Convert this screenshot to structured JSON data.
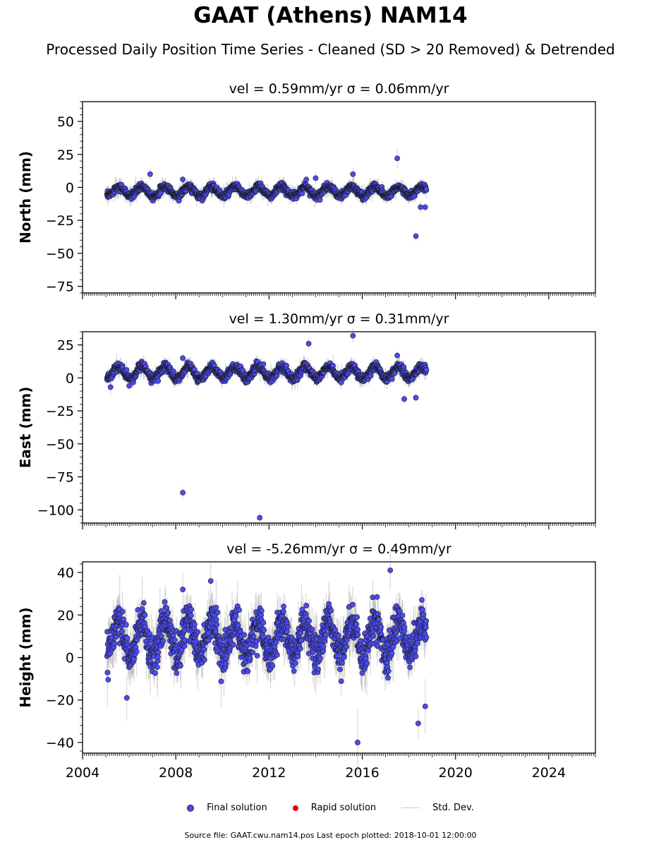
{
  "title": "GAAT (Athens) NAM14",
  "subtitle": "Processed Daily Position Time Series - Cleaned (SD > 20 Removed) & Detrended",
  "footer": "Source file: GAAT.cwu.nam14.pos  Last epoch plotted: 2018-10-01 12:00:00",
  "legend": [
    {
      "label": "Final solution",
      "color": "#4b4bf2"
    },
    {
      "label": "Rapid solution",
      "color": "#e00000"
    },
    {
      "label": "Std. Dev.",
      "color": "#cccccc"
    }
  ],
  "chart_data": [
    {
      "type": "scatter",
      "title": "vel = 0.59mm/yr   σ = 0.06mm/yr",
      "ylabel": "North (mm)",
      "xlim": [
        2004,
        2026
      ],
      "ylim": [
        -80,
        65
      ],
      "yticks": [
        50,
        25,
        0,
        -25,
        -50,
        -75
      ],
      "ytick_labels": [
        "50",
        "25",
        "0",
        "−25",
        "−50",
        "−75"
      ],
      "xticks": [
        2004,
        2008,
        2012,
        2016,
        2020,
        2024
      ],
      "xtick_labels": [],
      "data_range": [
        2005.05,
        2018.75
      ],
      "series": [
        {
          "name": "Final solution",
          "amplitude": 3.5,
          "noise": 2.2,
          "offset": -3,
          "outliers": [
            [
              2006.9,
              10
            ],
            [
              2008.3,
              6
            ],
            [
              2013.6,
              6
            ],
            [
              2014.0,
              7
            ],
            [
              2015.6,
              10
            ],
            [
              2017.5,
              22
            ],
            [
              2018.3,
              -37
            ],
            [
              2018.5,
              -15
            ],
            [
              2018.7,
              -15
            ]
          ]
        }
      ]
    },
    {
      "type": "scatter",
      "title": "vel = 1.30mm/yr   σ = 0.31mm/yr",
      "ylabel": "East (mm)",
      "xlim": [
        2004,
        2026
      ],
      "ylim": [
        -110,
        35
      ],
      "yticks": [
        25,
        0,
        -25,
        -50,
        -75,
        -100
      ],
      "ytick_labels": [
        "25",
        "0",
        "−25",
        "−50",
        "−75",
        "−100"
      ],
      "xticks": [
        2004,
        2008,
        2012,
        2016,
        2020,
        2024
      ],
      "xtick_labels": [],
      "data_range": [
        2005.05,
        2018.75
      ],
      "series": [
        {
          "name": "Final solution",
          "amplitude": 4.5,
          "noise": 2.5,
          "offset": 4,
          "outliers": [
            [
              2005.2,
              -7
            ],
            [
              2006.0,
              -6
            ],
            [
              2008.3,
              -87
            ],
            [
              2008.3,
              15
            ],
            [
              2011.6,
              -106
            ],
            [
              2013.7,
              26
            ],
            [
              2015.6,
              32
            ],
            [
              2017.5,
              17
            ],
            [
              2017.8,
              -16
            ],
            [
              2018.3,
              -15
            ]
          ]
        }
      ]
    },
    {
      "type": "scatter",
      "title": "vel = -5.26mm/yr   σ = 0.49mm/yr",
      "ylabel": "Height (mm)",
      "xlim": [
        2004,
        2026
      ],
      "ylim": [
        -45,
        45
      ],
      "yticks": [
        40,
        20,
        0,
        -20,
        -40
      ],
      "ytick_labels": [
        "40",
        "20",
        "0",
        "−20",
        "−40"
      ],
      "xticks": [
        2004,
        2008,
        2012,
        2016,
        2020,
        2024
      ],
      "xtick_labels": [
        "2004",
        "2008",
        "2012",
        "2016",
        "2020",
        "2024"
      ],
      "data_range": [
        2005.05,
        2018.75
      ],
      "series": [
        {
          "name": "Final solution",
          "amplitude": 8,
          "noise": 7,
          "offset": 9,
          "outliers": [
            [
              2005.9,
              -19
            ],
            [
              2008.3,
              32
            ],
            [
              2009.5,
              36
            ],
            [
              2015.8,
              -40
            ],
            [
              2017.2,
              41
            ],
            [
              2018.4,
              -31
            ],
            [
              2018.7,
              -23
            ]
          ]
        }
      ]
    }
  ]
}
